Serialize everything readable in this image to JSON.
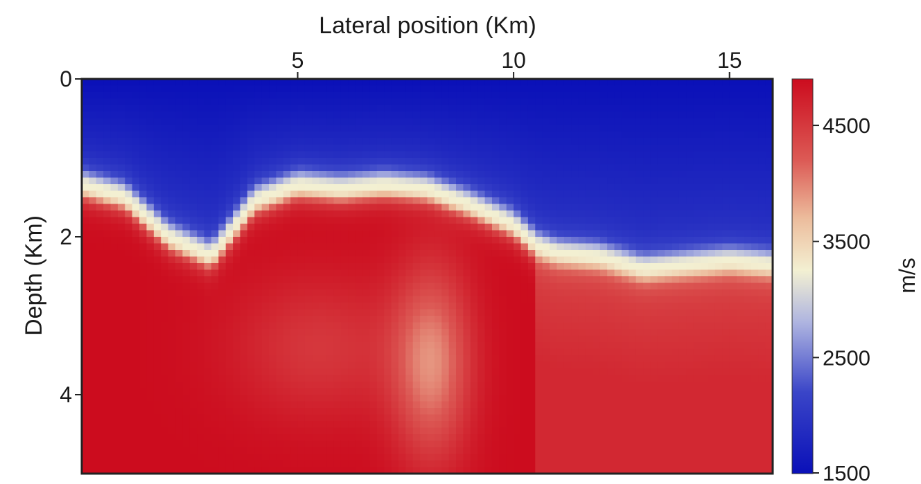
{
  "chart_data": {
    "type": "heatmap",
    "title": "",
    "xlabel": "Lateral position (Km)",
    "ylabel": "Depth (Km)",
    "xlim": [
      0,
      16
    ],
    "ylim": [
      0,
      5
    ],
    "x_ticks": [
      5,
      10,
      15
    ],
    "y_ticks": [
      0,
      2,
      4
    ],
    "x_axis_position": "top",
    "y_axis_inverted": true,
    "colorbar": {
      "label": "m/s",
      "range": [
        1500,
        4900
      ],
      "ticks": [
        1500,
        2500,
        3500,
        4500
      ],
      "colormap": [
        {
          "value": 1500,
          "color": "#0a10b8"
        },
        {
          "value": 2200,
          "color": "#3a45c8"
        },
        {
          "value": 2800,
          "color": "#aeb4e0"
        },
        {
          "value": 3250,
          "color": "#f3f0d2"
        },
        {
          "value": 3700,
          "color": "#ecbc9c"
        },
        {
          "value": 4200,
          "color": "#dc5a55"
        },
        {
          "value": 4900,
          "color": "#cc0c1e"
        }
      ]
    },
    "interface_depth_profile": {
      "x": [
        0,
        1,
        2,
        3,
        3.5,
        4,
        5,
        6,
        7,
        8,
        9,
        10,
        10.5,
        11,
        12,
        13,
        14,
        15,
        16
      ],
      "depth": [
        1.35,
        1.5,
        2.0,
        2.25,
        1.9,
        1.55,
        1.35,
        1.4,
        1.35,
        1.4,
        1.6,
        1.85,
        2.1,
        2.2,
        2.25,
        2.4,
        2.35,
        2.3,
        2.35
      ]
    },
    "values": {
      "above_interface": [
        1500,
        2000
      ],
      "below_interface": [
        3800,
        4900
      ]
    }
  }
}
